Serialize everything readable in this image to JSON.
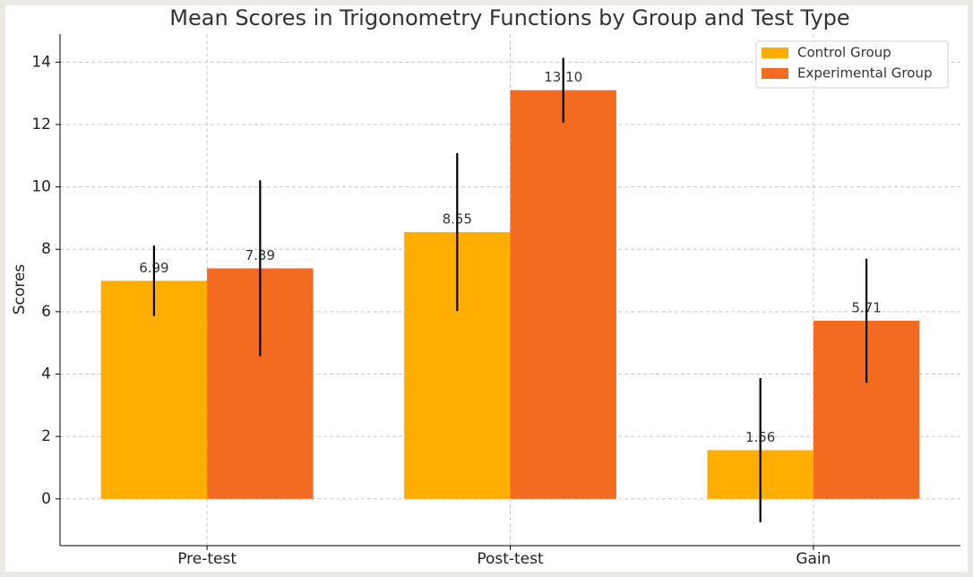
{
  "chart_data": {
    "type": "bar",
    "title": "Mean Scores in Trigonometry Functions by Group and Test Type",
    "ylabel": "Scores",
    "categories": [
      "Pre-test",
      "Post-test",
      "Gain"
    ],
    "series": [
      {
        "name": "Control Group",
        "color": "#ffae00",
        "values": [
          6.99,
          8.55,
          1.56
        ],
        "value_labels": [
          "6.99",
          "8.55",
          "1.56"
        ],
        "errors": [
          1.13,
          2.53,
          2.31
        ]
      },
      {
        "name": "Experimental Group",
        "color": "#f26b21",
        "values": [
          7.39,
          13.1,
          5.71
        ],
        "value_labels": [
          "7.39",
          "13.10",
          "5.71"
        ],
        "errors": [
          2.82,
          1.04,
          1.99
        ]
      }
    ],
    "ylim": [
      -1.5,
      14.9
    ],
    "yticks": [
      0,
      2,
      4,
      6,
      8,
      10,
      12,
      14
    ],
    "grid": true,
    "legend": "upper right"
  }
}
